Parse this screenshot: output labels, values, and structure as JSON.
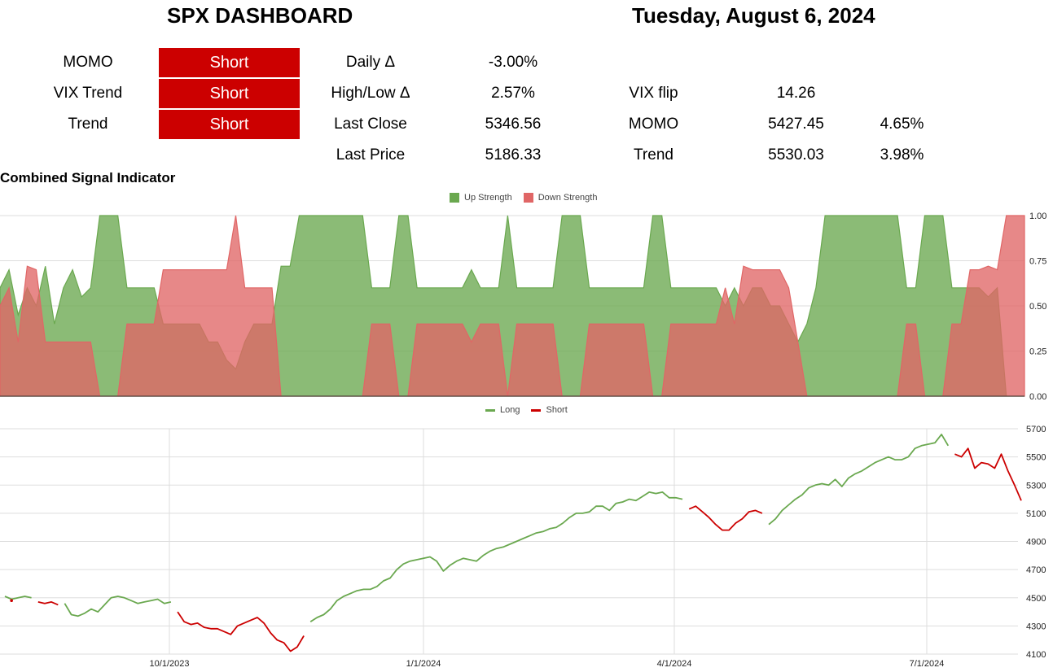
{
  "header": {
    "title": "SPX DASHBOARD",
    "date": "Tuesday, August 6, 2024"
  },
  "signals": [
    {
      "label": "MOMO",
      "value": "Short"
    },
    {
      "label": "VIX Trend",
      "value": "Short"
    },
    {
      "label": "Trend",
      "value": "Short"
    }
  ],
  "stats": {
    "daily_delta": {
      "label": "Daily Δ",
      "value": "-3.00%"
    },
    "highlow_delta": {
      "label": "High/Low Δ",
      "value": "2.57%"
    },
    "last_close": {
      "label": "Last Close",
      "value": "5346.56"
    },
    "last_price": {
      "label": "Last Price",
      "value": "5186.33"
    },
    "vix_flip": {
      "label": "VIX flip",
      "value": "14.26"
    },
    "momo": {
      "label": "MOMO",
      "value": "5427.45",
      "pct": "4.65%"
    },
    "trend": {
      "label": "Trend",
      "value": "5530.03",
      "pct": "3.98%"
    }
  },
  "colors": {
    "signal_red": "#cc0000",
    "up": "#6aa84f",
    "down": "#e06666",
    "long": "#6aa84f",
    "short": "#cc0000"
  },
  "chart_data": [
    {
      "type": "area",
      "title": "Combined Signal Indicator",
      "legend": [
        "Up Strength",
        "Down Strength"
      ],
      "legend_position": "top",
      "ylim": [
        0,
        1
      ],
      "yticks": [
        "1.00",
        "0.75",
        "0.50",
        "0.25",
        "0.00"
      ],
      "series": [
        {
          "name": "Up Strength",
          "values": [
            0.6,
            0.7,
            0.45,
            0.6,
            0.5,
            0.72,
            0.4,
            0.6,
            0.7,
            0.55,
            0.6,
            1.0,
            1.0,
            1.0,
            0.6,
            0.6,
            0.6,
            0.6,
            0.4,
            0.4,
            0.4,
            0.4,
            0.4,
            0.3,
            0.3,
            0.2,
            0.15,
            0.3,
            0.4,
            0.4,
            0.4,
            0.72,
            0.72,
            1.0,
            1.0,
            1.0,
            1.0,
            1.0,
            1.0,
            1.0,
            1.0,
            0.6,
            0.6,
            0.6,
            1.0,
            1.0,
            0.6,
            0.6,
            0.6,
            0.6,
            0.6,
            0.6,
            0.7,
            0.6,
            0.6,
            0.6,
            1.0,
            0.6,
            0.6,
            0.6,
            0.6,
            0.6,
            1.0,
            1.0,
            1.0,
            0.6,
            0.6,
            0.6,
            0.6,
            0.6,
            0.6,
            0.6,
            1.0,
            1.0,
            0.6,
            0.6,
            0.6,
            0.6,
            0.6,
            0.6,
            0.5,
            0.6,
            0.5,
            0.6,
            0.6,
            0.5,
            0.5,
            0.4,
            0.3,
            0.4,
            0.6,
            1.0,
            1.0,
            1.0,
            1.0,
            1.0,
            1.0,
            1.0,
            1.0,
            1.0,
            0.6,
            0.6,
            1.0,
            1.0,
            1.0,
            0.6,
            0.6,
            0.6,
            0.6,
            0.55,
            0.6,
            0.0,
            0.0,
            0.0
          ]
        },
        {
          "name": "Down Strength",
          "values": [
            0.5,
            0.6,
            0.3,
            0.72,
            0.7,
            0.3,
            0.3,
            0.3,
            0.3,
            0.3,
            0.3,
            0.0,
            0.0,
            0.0,
            0.4,
            0.4,
            0.4,
            0.4,
            0.7,
            0.7,
            0.7,
            0.7,
            0.7,
            0.7,
            0.7,
            0.7,
            1.0,
            0.6,
            0.6,
            0.6,
            0.6,
            0.0,
            0.0,
            0.0,
            0.0,
            0.0,
            0.0,
            0.0,
            0.0,
            0.0,
            0.0,
            0.4,
            0.4,
            0.4,
            0.0,
            0.0,
            0.4,
            0.4,
            0.4,
            0.4,
            0.4,
            0.4,
            0.3,
            0.4,
            0.4,
            0.4,
            0.0,
            0.4,
            0.4,
            0.4,
            0.4,
            0.4,
            0.0,
            0.0,
            0.0,
            0.4,
            0.4,
            0.4,
            0.4,
            0.4,
            0.4,
            0.4,
            0.0,
            0.0,
            0.4,
            0.4,
            0.4,
            0.4,
            0.4,
            0.4,
            0.6,
            0.4,
            0.72,
            0.7,
            0.7,
            0.7,
            0.7,
            0.6,
            0.3,
            0.0,
            0.0,
            0.0,
            0.0,
            0.0,
            0.0,
            0.0,
            0.0,
            0.0,
            0.0,
            0.0,
            0.4,
            0.4,
            0.0,
            0.0,
            0.0,
            0.4,
            0.4,
            0.7,
            0.7,
            0.72,
            0.7,
            1.0,
            1.0,
            1.0
          ]
        }
      ]
    },
    {
      "type": "line",
      "legend": [
        "Long",
        "Short"
      ],
      "legend_position": "top",
      "ylim": [
        4100,
        5700
      ],
      "yticks": [
        "5700",
        "5500",
        "5300",
        "5100",
        "4900",
        "4700",
        "4500",
        "4300",
        "4100"
      ],
      "xticks": [
        "10/1/2023",
        "1/1/2024",
        "4/1/2024",
        "7/1/2024"
      ],
      "series": [
        {
          "name": "Long",
          "values": [
            4510,
            4490,
            4500,
            4510,
            4500,
            null,
            null,
            null,
            null,
            4460,
            4380,
            4370,
            4390,
            4420,
            4400,
            4450,
            4500,
            4510,
            4500,
            4480,
            4460,
            4470,
            4480,
            4490,
            4460,
            4470,
            null,
            null,
            null,
            null,
            null,
            null,
            null,
            null,
            null,
            null,
            null,
            null,
            null,
            null,
            null,
            null,
            null,
            null,
            null,
            null,
            4330,
            4360,
            4380,
            4420,
            4480,
            4510,
            4530,
            4550,
            4560,
            4560,
            4580,
            4620,
            4640,
            4700,
            4740,
            4760,
            4770,
            4780,
            4790,
            4760,
            4690,
            4730,
            4760,
            4780,
            4770,
            4760,
            4800,
            4830,
            4850,
            4860,
            4880,
            4900,
            4920,
            4940,
            4960,
            4970,
            4990,
            5000,
            5030,
            5070,
            5100,
            5100,
            5110,
            5150,
            5150,
            5120,
            5170,
            5180,
            5200,
            5190,
            5220,
            5250,
            5240,
            5250,
            5210,
            5210,
            5200,
            null,
            null,
            null,
            null,
            null,
            null,
            null,
            null,
            null,
            null,
            null,
            null,
            5020,
            5060,
            5120,
            5160,
            5200,
            5230,
            5280,
            5300,
            5310,
            5300,
            5340,
            5290,
            5350,
            5380,
            5400,
            5430,
            5460,
            5480,
            5500,
            5480,
            5480,
            5500,
            5560,
            5580,
            5590,
            5600,
            5660,
            5580,
            null,
            null,
            null,
            null,
            null,
            null,
            null,
            null,
            null,
            null,
            null
          ]
        },
        {
          "name": "Short",
          "values": [
            null,
            4480,
            null,
            null,
            null,
            4470,
            4460,
            4470,
            4450,
            null,
            null,
            null,
            null,
            null,
            null,
            null,
            null,
            null,
            null,
            null,
            null,
            null,
            null,
            null,
            null,
            null,
            4400,
            4330,
            4310,
            4320,
            4290,
            4280,
            4280,
            4260,
            4240,
            4300,
            4320,
            4340,
            4360,
            4320,
            4250,
            4200,
            4180,
            4120,
            4150,
            4230,
            null,
            null,
            null,
            null,
            null,
            null,
            null,
            null,
            null,
            null,
            null,
            null,
            null,
            null,
            null,
            null,
            null,
            null,
            null,
            null,
            null,
            null,
            null,
            null,
            null,
            null,
            null,
            null,
            null,
            null,
            null,
            null,
            null,
            null,
            null,
            null,
            null,
            null,
            null,
            null,
            null,
            null,
            null,
            null,
            null,
            null,
            null,
            null,
            null,
            null,
            null,
            null,
            null,
            null,
            null,
            null,
            null,
            5130,
            5150,
            5110,
            5070,
            5020,
            4980,
            4980,
            5030,
            5060,
            5110,
            5120,
            5100,
            null,
            null,
            null,
            null,
            null,
            null,
            null,
            null,
            null,
            null,
            null,
            null,
            null,
            null,
            null,
            null,
            null,
            null,
            null,
            null,
            null,
            null,
            null,
            null,
            null,
            null,
            null,
            null,
            5520,
            5500,
            5560,
            5420,
            5460,
            5450,
            5420,
            5520,
            5400,
            5300,
            5190
          ]
        }
      ]
    }
  ]
}
